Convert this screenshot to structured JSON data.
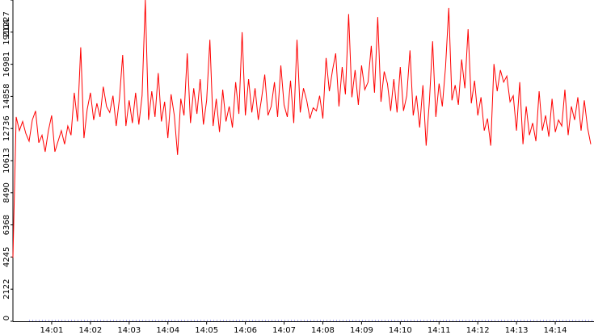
{
  "chart_data": {
    "type": "line",
    "title": "",
    "xlabel": "",
    "ylabel": "",
    "x_start": "14:00:00",
    "x_end": "14:15:00",
    "ylim": [
      0,
      21227
    ],
    "y_ticks": [
      0,
      2122,
      4245,
      6368,
      8490,
      10613,
      12736,
      14858,
      16981,
      19104,
      21227
    ],
    "y_tick_labels": [
      "0",
      "2122",
      "4245",
      "6368",
      "8490",
      "10613",
      "12736",
      "14858",
      "16981",
      "19104",
      "21227"
    ],
    "x_ticks": [
      "14:01",
      "14:02",
      "14:03",
      "14:04",
      "14:05",
      "14:06",
      "14:07",
      "14:08",
      "14:09",
      "14:10",
      "14:11",
      "14:12",
      "14:13",
      "14:14"
    ],
    "grid": false,
    "legend": "none",
    "series": [
      {
        "color": "#ff0000",
        "points": [
          [
            "14:00:00",
            4200
          ],
          [
            "14:00:05",
            13500
          ],
          [
            "14:00:10",
            12600
          ],
          [
            "14:00:15",
            13200
          ],
          [
            "14:00:20",
            12400
          ],
          [
            "14:00:25",
            11900
          ],
          [
            "14:00:30",
            13300
          ],
          [
            "14:00:35",
            13900
          ],
          [
            "14:00:40",
            11800
          ],
          [
            "14:00:45",
            12300
          ],
          [
            "14:00:50",
            11200
          ],
          [
            "14:00:55",
            12600
          ],
          [
            "14:01:00",
            13600
          ],
          [
            "14:01:05",
            11200
          ],
          [
            "14:01:10",
            11900
          ],
          [
            "14:01:15",
            12600
          ],
          [
            "14:01:20",
            11700
          ],
          [
            "14:01:25",
            12900
          ],
          [
            "14:01:30",
            12300
          ],
          [
            "14:01:35",
            15100
          ],
          [
            "14:01:40",
            13200
          ],
          [
            "14:01:45",
            18100
          ],
          [
            "14:01:50",
            12100
          ],
          [
            "14:01:55",
            14000
          ],
          [
            "14:02:00",
            15100
          ],
          [
            "14:02:05",
            13300
          ],
          [
            "14:02:10",
            14400
          ],
          [
            "14:02:15",
            13500
          ],
          [
            "14:02:20",
            15500
          ],
          [
            "14:02:25",
            14200
          ],
          [
            "14:02:30",
            13800
          ],
          [
            "14:02:35",
            14900
          ],
          [
            "14:02:40",
            12900
          ],
          [
            "14:02:45",
            14700
          ],
          [
            "14:02:50",
            17600
          ],
          [
            "14:02:55",
            12900
          ],
          [
            "14:03:00",
            14600
          ],
          [
            "14:03:05",
            13100
          ],
          [
            "14:03:10",
            15100
          ],
          [
            "14:03:15",
            13000
          ],
          [
            "14:03:20",
            14900
          ],
          [
            "14:03:25",
            21227
          ],
          [
            "14:03:30",
            13300
          ],
          [
            "14:03:35",
            15200
          ],
          [
            "14:03:40",
            13500
          ],
          [
            "14:03:45",
            16400
          ],
          [
            "14:03:50",
            13200
          ],
          [
            "14:03:55",
            14500
          ],
          [
            "14:04:00",
            12100
          ],
          [
            "14:04:05",
            15000
          ],
          [
            "14:04:10",
            13600
          ],
          [
            "14:04:15",
            11000
          ],
          [
            "14:04:20",
            14700
          ],
          [
            "14:04:25",
            13600
          ],
          [
            "14:04:30",
            17700
          ],
          [
            "14:04:35",
            13100
          ],
          [
            "14:04:40",
            15400
          ],
          [
            "14:04:45",
            13700
          ],
          [
            "14:04:50",
            16000
          ],
          [
            "14:04:55",
            13000
          ],
          [
            "14:05:00",
            14600
          ],
          [
            "14:05:05",
            18600
          ],
          [
            "14:05:10",
            12900
          ],
          [
            "14:05:15",
            14700
          ],
          [
            "14:05:20",
            12500
          ],
          [
            "14:05:25",
            15300
          ],
          [
            "14:05:30",
            13200
          ],
          [
            "14:05:35",
            14200
          ],
          [
            "14:05:40",
            12800
          ],
          [
            "14:05:45",
            15800
          ],
          [
            "14:05:50",
            13700
          ],
          [
            "14:05:55",
            19100
          ],
          [
            "14:06:00",
            13600
          ],
          [
            "14:06:05",
            16000
          ],
          [
            "14:06:10",
            13800
          ],
          [
            "14:06:15",
            15400
          ],
          [
            "14:06:20",
            13300
          ],
          [
            "14:06:25",
            14700
          ],
          [
            "14:06:30",
            16300
          ],
          [
            "14:06:35",
            13600
          ],
          [
            "14:06:40",
            14200
          ],
          [
            "14:06:45",
            15800
          ],
          [
            "14:06:50",
            13500
          ],
          [
            "14:06:55",
            16900
          ],
          [
            "14:07:00",
            14300
          ],
          [
            "14:07:05",
            13500
          ],
          [
            "14:07:10",
            15900
          ],
          [
            "14:07:15",
            13100
          ],
          [
            "14:07:20",
            18600
          ],
          [
            "14:07:25",
            13800
          ],
          [
            "14:07:30",
            15400
          ],
          [
            "14:07:35",
            14600
          ],
          [
            "14:07:40",
            13400
          ],
          [
            "14:07:45",
            14100
          ],
          [
            "14:07:50",
            13900
          ],
          [
            "14:07:55",
            14900
          ],
          [
            "14:08:00",
            13400
          ],
          [
            "14:08:05",
            17400
          ],
          [
            "14:08:10",
            15200
          ],
          [
            "14:08:15",
            16600
          ],
          [
            "14:08:20",
            17700
          ],
          [
            "14:08:25",
            14200
          ],
          [
            "14:08:30",
            16800
          ],
          [
            "14:08:35",
            15000
          ],
          [
            "14:08:40",
            20300
          ],
          [
            "14:08:45",
            14800
          ],
          [
            "14:08:50",
            16600
          ],
          [
            "14:08:55",
            14300
          ],
          [
            "14:09:00",
            16900
          ],
          [
            "14:09:05",
            15300
          ],
          [
            "14:09:10",
            15800
          ],
          [
            "14:09:15",
            18200
          ],
          [
            "14:09:20",
            15100
          ],
          [
            "14:09:25",
            20100
          ],
          [
            "14:09:30",
            14500
          ],
          [
            "14:09:35",
            16500
          ],
          [
            "14:09:40",
            15700
          ],
          [
            "14:09:45",
            13900
          ],
          [
            "14:09:50",
            16000
          ],
          [
            "14:09:55",
            13800
          ],
          [
            "14:10:00",
            16800
          ],
          [
            "14:10:05",
            13900
          ],
          [
            "14:10:10",
            14900
          ],
          [
            "14:10:15",
            17900
          ],
          [
            "14:10:20",
            13600
          ],
          [
            "14:10:25",
            14900
          ],
          [
            "14:10:30",
            12800
          ],
          [
            "14:10:35",
            15600
          ],
          [
            "14:10:40",
            11600
          ],
          [
            "14:10:45",
            14500
          ],
          [
            "14:10:50",
            18500
          ],
          [
            "14:10:55",
            13500
          ],
          [
            "14:11:00",
            15700
          ],
          [
            "14:11:05",
            14200
          ],
          [
            "14:11:10",
            16800
          ],
          [
            "14:11:15",
            20700
          ],
          [
            "14:11:20",
            14600
          ],
          [
            "14:11:25",
            15600
          ],
          [
            "14:11:30",
            14300
          ],
          [
            "14:11:35",
            17300
          ],
          [
            "14:11:40",
            15400
          ],
          [
            "14:11:45",
            19300
          ],
          [
            "14:11:50",
            14400
          ],
          [
            "14:11:55",
            15900
          ],
          [
            "14:12:00",
            13600
          ],
          [
            "14:12:05",
            14800
          ],
          [
            "14:12:10",
            12600
          ],
          [
            "14:12:15",
            13400
          ],
          [
            "14:12:20",
            11600
          ],
          [
            "14:12:25",
            17000
          ],
          [
            "14:12:30",
            15200
          ],
          [
            "14:12:35",
            16600
          ],
          [
            "14:12:40",
            15800
          ],
          [
            "14:12:45",
            16200
          ],
          [
            "14:12:50",
            14500
          ],
          [
            "14:12:55",
            14900
          ],
          [
            "14:13:00",
            12600
          ],
          [
            "14:13:05",
            15800
          ],
          [
            "14:13:10",
            11700
          ],
          [
            "14:13:15",
            14200
          ],
          [
            "14:13:20",
            12300
          ],
          [
            "14:13:25",
            13100
          ],
          [
            "14:13:30",
            11900
          ],
          [
            "14:13:35",
            15200
          ],
          [
            "14:13:40",
            12600
          ],
          [
            "14:13:45",
            13600
          ],
          [
            "14:13:50",
            12200
          ],
          [
            "14:13:55",
            14700
          ],
          [
            "14:14:00",
            12500
          ],
          [
            "14:14:05",
            13300
          ],
          [
            "14:14:10",
            12900
          ],
          [
            "14:14:15",
            15300
          ],
          [
            "14:14:20",
            12300
          ],
          [
            "14:14:25",
            14200
          ],
          [
            "14:14:30",
            13300
          ],
          [
            "14:14:35",
            14800
          ],
          [
            "14:14:40",
            12600
          ],
          [
            "14:14:45",
            14600
          ],
          [
            "14:14:50",
            12800
          ],
          [
            "14:14:55",
            11700
          ]
        ]
      }
    ]
  },
  "colors": {
    "background": "#ffffff",
    "axis": "#000000",
    "line": "#ff0000",
    "x_axis_detail": "#0000ff"
  }
}
